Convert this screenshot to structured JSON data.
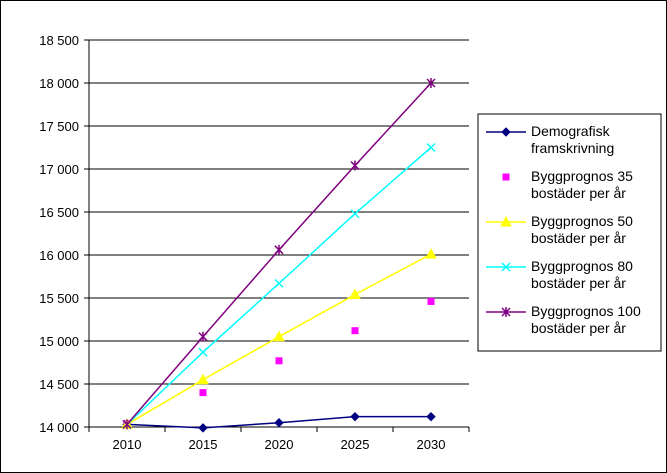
{
  "chart_data": {
    "type": "line",
    "x": [
      2010,
      2015,
      2020,
      2025,
      2030
    ],
    "ylim": [
      14000,
      18500
    ],
    "yticks": [
      14000,
      14500,
      15000,
      15500,
      16000,
      16500,
      17000,
      17500,
      18000,
      18500
    ],
    "ytick_labels": [
      "14 000",
      "14 500",
      "15 000",
      "15 500",
      "16 000",
      "16 500",
      "17 000",
      "17 500",
      "18 000",
      "18 500"
    ],
    "xtick_labels": [
      "2010",
      "2015",
      "2020",
      "2025",
      "2030"
    ],
    "grid": "horizontal",
    "legend_placement": "right",
    "series": [
      {
        "name_lines": [
          "Demografisk",
          "framskrivning"
        ],
        "values": [
          14030,
          13990,
          14050,
          14120,
          14120
        ],
        "color": "#000080",
        "marker": "diamond",
        "line": true
      },
      {
        "name_lines": [
          "Byggprognos 35",
          "bostäder per år"
        ],
        "values": [
          14040,
          14400,
          14770,
          15120,
          15460
        ],
        "color": "#FF00FF",
        "marker": "square",
        "line": false
      },
      {
        "name_lines": [
          "Byggprognos 50",
          "bostäder per år"
        ],
        "values": [
          14030,
          14550,
          15050,
          15540,
          16010
        ],
        "color": "#FFFF00",
        "marker": "triangle",
        "line": true
      },
      {
        "name_lines": [
          "Byggprognos 80",
          "bostäder per år"
        ],
        "values": [
          14030,
          14870,
          15670,
          16480,
          17250
        ],
        "color": "#00FFFF",
        "marker": "x",
        "line": true
      },
      {
        "name_lines": [
          "Byggprognos 100",
          "bostäder per år"
        ],
        "values": [
          14030,
          15050,
          16060,
          17040,
          18000
        ],
        "color": "#800080",
        "marker": "star",
        "line": true
      }
    ]
  }
}
